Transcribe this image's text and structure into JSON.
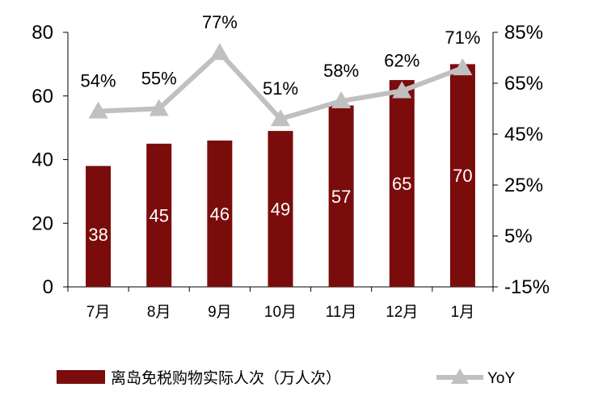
{
  "chart_data": {
    "type": "bar+line",
    "categories": [
      "7月",
      "8月",
      "9月",
      "10月",
      "11月",
      "12月",
      "1月"
    ],
    "series": [
      {
        "name": "离岛免税购物实际人次（万人次）",
        "type": "bar",
        "axis": "left",
        "values": [
          38,
          45,
          46,
          49,
          57,
          65,
          70
        ],
        "data_labels": [
          "38",
          "45",
          "46",
          "49",
          "57",
          "65",
          "70"
        ],
        "color": "#7b0c0c"
      },
      {
        "name": "YoY",
        "type": "line",
        "axis": "right",
        "values": [
          54,
          55,
          77,
          51,
          58,
          62,
          71
        ],
        "data_labels": [
          "54%",
          "55%",
          "77%",
          "51%",
          "58%",
          "62%",
          "71%"
        ],
        "color": "#c0c0c0"
      }
    ],
    "y_left": {
      "ylim": [
        0,
        80
      ],
      "ticks": [
        "0",
        "20",
        "40",
        "60",
        "80"
      ]
    },
    "y_right": {
      "ylim": [
        -15,
        85
      ],
      "ticks": [
        "-15%",
        "5%",
        "25%",
        "45%",
        "65%",
        "85%"
      ]
    },
    "grid": false,
    "legend_position": "bottom"
  }
}
